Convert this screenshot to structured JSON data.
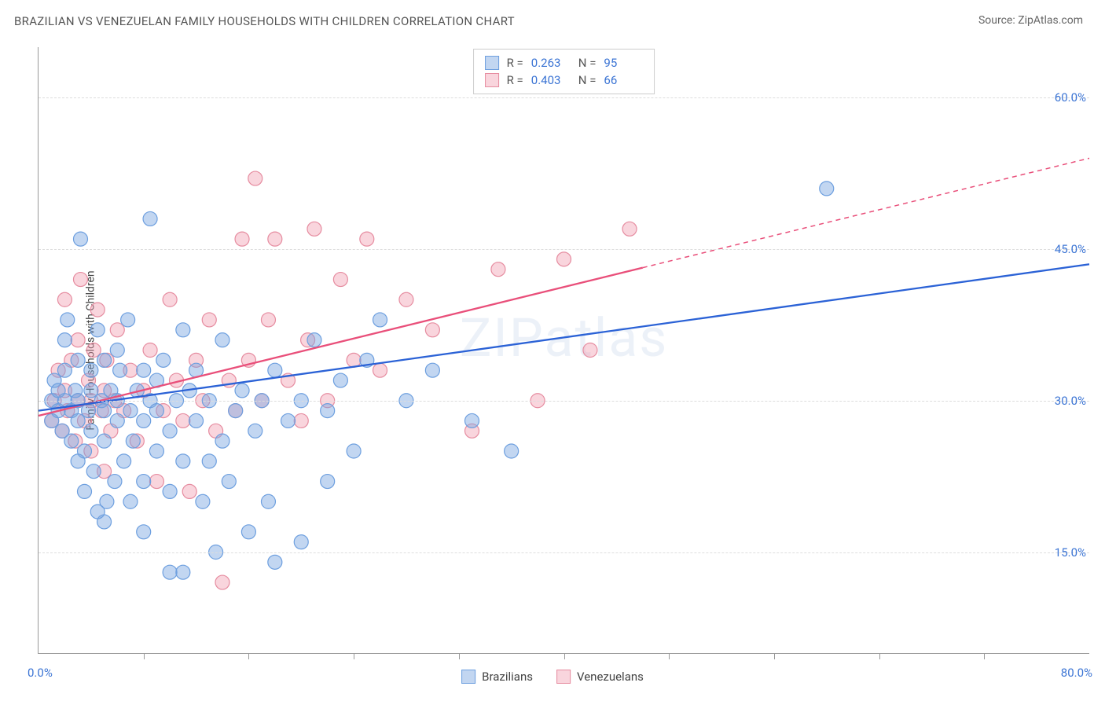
{
  "header": {
    "title": "BRAZILIAN VS VENEZUELAN FAMILY HOUSEHOLDS WITH CHILDREN CORRELATION CHART",
    "source_prefix": "Source: ",
    "source_name": "ZipAtlas.com"
  },
  "axes": {
    "y_label": "Family Households with Children",
    "x_min": 0.0,
    "x_max": 80.0,
    "y_min": 5.0,
    "y_max": 65.0,
    "x_origin_label": "0.0%",
    "x_max_label": "80.0%",
    "y_ticks": [
      {
        "v": 15.0,
        "label": "15.0%"
      },
      {
        "v": 30.0,
        "label": "30.0%"
      },
      {
        "v": 45.0,
        "label": "45.0%"
      },
      {
        "v": 60.0,
        "label": "60.0%"
      }
    ],
    "x_tick_positions": [
      8,
      16,
      24,
      32,
      40,
      48,
      56,
      64,
      72
    ]
  },
  "watermark": "ZIPatlas",
  "colors": {
    "blue_fill": "rgba(120,165,225,0.45)",
    "blue_stroke": "#6d9fdf",
    "pink_fill": "rgba(240,150,170,0.40)",
    "pink_stroke": "#e68ca0",
    "blue_line": "#2b62d6",
    "pink_line": "#e94f7a",
    "grid": "#dddddd",
    "tick_text": "#3b74d4"
  },
  "marker_radius": 9,
  "marker_stroke_width": 1.2,
  "trend_line_width": 2.3,
  "series_legend": [
    {
      "key": "brazilians",
      "label": "Brazilians"
    },
    {
      "key": "venezuelans",
      "label": "Venezuelans"
    }
  ],
  "stats": [
    {
      "key": "brazilians",
      "R_label": "R =",
      "R": "0.263",
      "N_label": "N =",
      "N": "95"
    },
    {
      "key": "venezuelans",
      "R_label": "R =",
      "R": "0.403",
      "N_label": "N =",
      "N": "66"
    }
  ],
  "trend_lines": {
    "brazilians": {
      "x1": 0,
      "y1": 29.0,
      "x2": 80,
      "y2": 43.5,
      "solid_until_x": 80
    },
    "venezuelans": {
      "x1": 0,
      "y1": 28.5,
      "x2": 80,
      "y2": 54.0,
      "solid_until_x": 46
    }
  },
  "scatter": {
    "brazilians": [
      [
        1,
        28
      ],
      [
        1,
        30
      ],
      [
        1.2,
        32
      ],
      [
        1.5,
        29
      ],
      [
        1.5,
        31
      ],
      [
        1.8,
        27
      ],
      [
        2,
        30
      ],
      [
        2,
        33
      ],
      [
        2,
        36
      ],
      [
        2.2,
        38
      ],
      [
        2.5,
        26
      ],
      [
        2.5,
        29
      ],
      [
        2.8,
        31
      ],
      [
        3,
        24
      ],
      [
        3,
        28
      ],
      [
        3,
        30
      ],
      [
        3,
        34
      ],
      [
        3.2,
        46
      ],
      [
        3.5,
        21
      ],
      [
        3.5,
        25
      ],
      [
        3.8,
        29
      ],
      [
        4,
        27
      ],
      [
        4,
        31
      ],
      [
        4,
        33
      ],
      [
        4.2,
        23
      ],
      [
        4.5,
        37
      ],
      [
        4.8,
        30
      ],
      [
        5,
        18
      ],
      [
        5,
        26
      ],
      [
        5,
        29
      ],
      [
        5,
        34
      ],
      [
        5.2,
        20
      ],
      [
        5.5,
        31
      ],
      [
        5.8,
        22
      ],
      [
        6,
        28
      ],
      [
        6,
        30
      ],
      [
        6.2,
        33
      ],
      [
        6.5,
        24
      ],
      [
        6.8,
        38
      ],
      [
        7,
        20
      ],
      [
        7,
        29
      ],
      [
        7.2,
        26
      ],
      [
        7.5,
        31
      ],
      [
        8,
        17
      ],
      [
        8,
        22
      ],
      [
        8,
        28
      ],
      [
        8,
        33
      ],
      [
        8.5,
        48
      ],
      [
        8.5,
        30
      ],
      [
        9,
        25
      ],
      [
        9,
        29
      ],
      [
        9.5,
        34
      ],
      [
        10,
        13
      ],
      [
        10,
        21
      ],
      [
        10,
        27
      ],
      [
        10.5,
        30
      ],
      [
        11,
        13
      ],
      [
        11,
        24
      ],
      [
        11.5,
        31
      ],
      [
        12,
        28
      ],
      [
        12,
        33
      ],
      [
        12.5,
        20
      ],
      [
        13,
        30
      ],
      [
        13.5,
        15
      ],
      [
        14,
        26
      ],
      [
        14,
        36
      ],
      [
        14.5,
        22
      ],
      [
        15,
        29
      ],
      [
        15.5,
        31
      ],
      [
        16,
        17
      ],
      [
        16.5,
        27
      ],
      [
        17,
        30
      ],
      [
        17.5,
        20
      ],
      [
        18,
        14
      ],
      [
        18,
        33
      ],
      [
        19,
        28
      ],
      [
        20,
        16
      ],
      [
        20,
        30
      ],
      [
        21,
        36
      ],
      [
        22,
        22
      ],
      [
        22,
        29
      ],
      [
        23,
        32
      ],
      [
        24,
        25
      ],
      [
        25,
        34
      ],
      [
        26,
        38
      ],
      [
        28,
        30
      ],
      [
        30,
        33
      ],
      [
        33,
        28
      ],
      [
        36,
        25
      ],
      [
        60,
        51
      ],
      [
        4.5,
        19
      ],
      [
        6,
        35
      ],
      [
        9,
        32
      ],
      [
        11,
        37
      ],
      [
        13,
        24
      ]
    ],
    "venezuelans": [
      [
        1,
        28
      ],
      [
        1.2,
        30
      ],
      [
        1.5,
        33
      ],
      [
        1.8,
        27
      ],
      [
        2,
        31
      ],
      [
        2,
        40
      ],
      [
        2.2,
        29
      ],
      [
        2.5,
        34
      ],
      [
        2.8,
        26
      ],
      [
        3,
        30
      ],
      [
        3,
        36
      ],
      [
        3.2,
        42
      ],
      [
        3.5,
        28
      ],
      [
        3.8,
        32
      ],
      [
        4,
        25
      ],
      [
        4,
        30
      ],
      [
        4.2,
        35
      ],
      [
        4.5,
        39
      ],
      [
        4.8,
        29
      ],
      [
        5,
        23
      ],
      [
        5,
        31
      ],
      [
        5.2,
        34
      ],
      [
        5.5,
        27
      ],
      [
        5.8,
        30
      ],
      [
        6,
        37
      ],
      [
        6.5,
        29
      ],
      [
        7,
        33
      ],
      [
        7.5,
        26
      ],
      [
        8,
        31
      ],
      [
        8.5,
        35
      ],
      [
        9,
        22
      ],
      [
        9.5,
        29
      ],
      [
        10,
        40
      ],
      [
        10.5,
        32
      ],
      [
        11,
        28
      ],
      [
        11.5,
        21
      ],
      [
        12,
        34
      ],
      [
        12.5,
        30
      ],
      [
        13,
        38
      ],
      [
        13.5,
        27
      ],
      [
        14,
        12
      ],
      [
        14.5,
        32
      ],
      [
        15,
        29
      ],
      [
        15.5,
        46
      ],
      [
        16,
        34
      ],
      [
        16.5,
        52
      ],
      [
        17,
        30
      ],
      [
        17.5,
        38
      ],
      [
        18,
        46
      ],
      [
        19,
        32
      ],
      [
        20,
        28
      ],
      [
        20.5,
        36
      ],
      [
        21,
        47
      ],
      [
        22,
        30
      ],
      [
        23,
        42
      ],
      [
        24,
        34
      ],
      [
        25,
        46
      ],
      [
        26,
        33
      ],
      [
        28,
        40
      ],
      [
        30,
        37
      ],
      [
        33,
        27
      ],
      [
        35,
        43
      ],
      [
        38,
        30
      ],
      [
        40,
        44
      ],
      [
        42,
        35
      ],
      [
        45,
        47
      ]
    ]
  }
}
